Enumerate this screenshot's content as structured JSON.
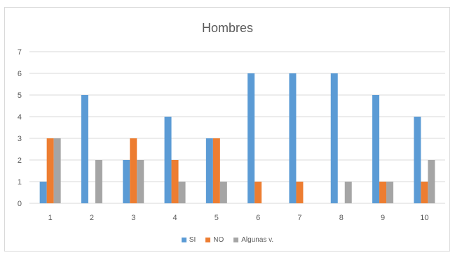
{
  "chart_data": {
    "type": "bar",
    "title": "Hombres",
    "categories": [
      "1",
      "2",
      "3",
      "4",
      "5",
      "6",
      "7",
      "8",
      "9",
      "10"
    ],
    "series": [
      {
        "name": "SI",
        "color": "#5b9bd5",
        "values": [
          1,
          5,
          2,
          4,
          3,
          6,
          6,
          6,
          5,
          4
        ]
      },
      {
        "name": "NO",
        "color": "#ed7d31",
        "values": [
          3,
          0,
          3,
          2,
          3,
          1,
          1,
          0,
          1,
          1
        ]
      },
      {
        "name": "Algunas v.",
        "color": "#a5a5a5",
        "values": [
          3,
          2,
          2,
          1,
          1,
          0,
          0,
          1,
          1,
          2
        ]
      }
    ],
    "ylim": [
      0,
      7
    ],
    "yticks": [
      0,
      1,
      2,
      3,
      4,
      5,
      6,
      7
    ],
    "grid": true,
    "legend_position": "bottom"
  }
}
